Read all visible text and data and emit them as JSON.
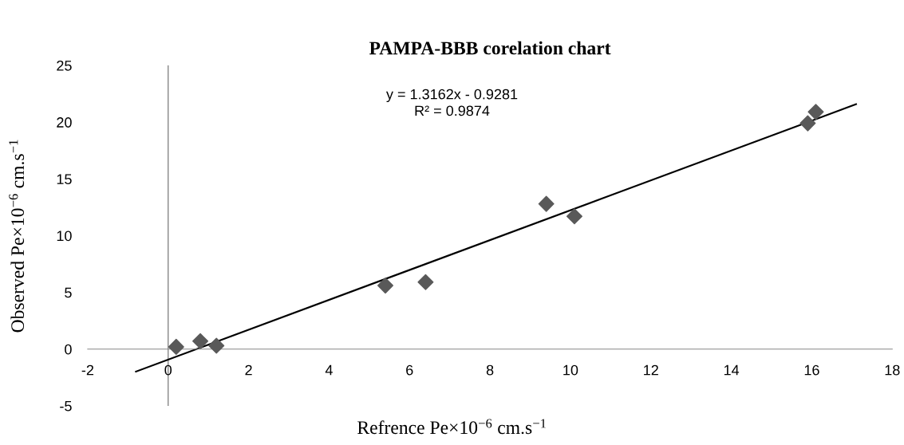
{
  "chart_data": {
    "type": "scatter",
    "title": "PAMPA-BBB corelation chart",
    "xlabel": "Refrence Pe×10$^{−6}$ cm.s$^{−1}$",
    "ylabel": "Observed Pe×10$^{−6}$ cm.s$^{−1}$",
    "x": [
      0.2,
      0.8,
      1.2,
      5.4,
      6.4,
      9.4,
      10.1,
      15.9,
      16.1
    ],
    "series": [
      {
        "color": "#595959",
        "marker": "diamond",
        "values": [
          0.2,
          0.7,
          0.3,
          5.6,
          5.9,
          12.8,
          11.7,
          19.9,
          20.9
        ]
      },
      {
        "type": "line",
        "color": "#000000",
        "marker": "none",
        "line_style": "solid",
        "x": [
          -0.8,
          17.1
        ],
        "values": [
          -1.98,
          21.58
        ]
      }
    ],
    "xlim": [
      -2,
      18
    ],
    "xticks": [
      -2,
      0,
      2,
      4,
      6,
      8,
      10,
      12,
      14,
      16,
      18
    ],
    "ylim": [
      -5,
      25
    ],
    "yticks": [
      -5,
      0,
      5,
      10,
      15,
      20,
      25
    ],
    "ref_lines": [
      {
        "axis": "x",
        "value": 0,
        "color": "#868686"
      }
    ],
    "annotations": [
      "y = 1.3162x - 0.9281\nR² = 0.9874"
    ],
    "grid": false,
    "legend": false
  }
}
